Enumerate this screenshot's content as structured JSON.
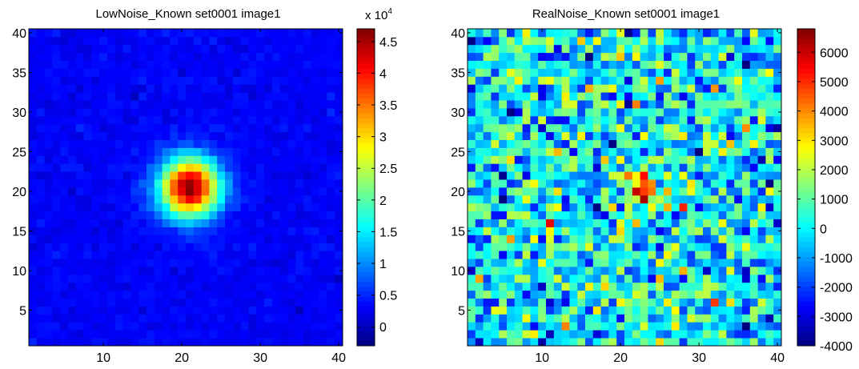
{
  "chart_data": [
    {
      "type": "heatmap",
      "title": "LowNoise_Known set0001 image1",
      "xlim": [
        0.5,
        40.5
      ],
      "ylim": [
        0.5,
        40.5
      ],
      "grid_size": 40,
      "x_ticks": [
        "10",
        "20",
        "30",
        "40"
      ],
      "y_ticks": [
        "5",
        "10",
        "15",
        "20",
        "25",
        "30",
        "35",
        "40"
      ],
      "colorbar": {
        "min": -3000,
        "max": 47000,
        "ticks": [
          "0",
          "0.5",
          "1",
          "1.5",
          "2",
          "2.5",
          "3",
          "3.5",
          "4",
          "4.5"
        ],
        "scale_label": "x 10",
        "scale_exponent": "4"
      },
      "peak": {
        "x": 21,
        "y": 20.5,
        "value": 47000,
        "sigma": 2.6
      },
      "background_mean": 3000,
      "noise_sd": 1500
    },
    {
      "type": "heatmap",
      "title": "RealNoise_Known set0001 image1",
      "xlim": [
        0.5,
        40.5
      ],
      "ylim": [
        0.5,
        40.5
      ],
      "grid_size": 40,
      "x_ticks": [
        "10",
        "20",
        "30",
        "40"
      ],
      "y_ticks": [
        "5",
        "10",
        "15",
        "20",
        "25",
        "30",
        "35",
        "40"
      ],
      "colorbar": {
        "min": -4000,
        "max": 6800,
        "ticks": [
          "-4000",
          "-3000",
          "-2000",
          "-1000",
          "0",
          "1000",
          "2000",
          "3000",
          "4000",
          "5000",
          "6000"
        ]
      },
      "peak": {
        "x": 22.5,
        "y": 20,
        "value": 6500,
        "sigma": 1.3
      },
      "background_mean": 0,
      "noise_sd": 1500
    }
  ],
  "colors": {
    "axis": "#000000",
    "background": "#ffffff"
  }
}
